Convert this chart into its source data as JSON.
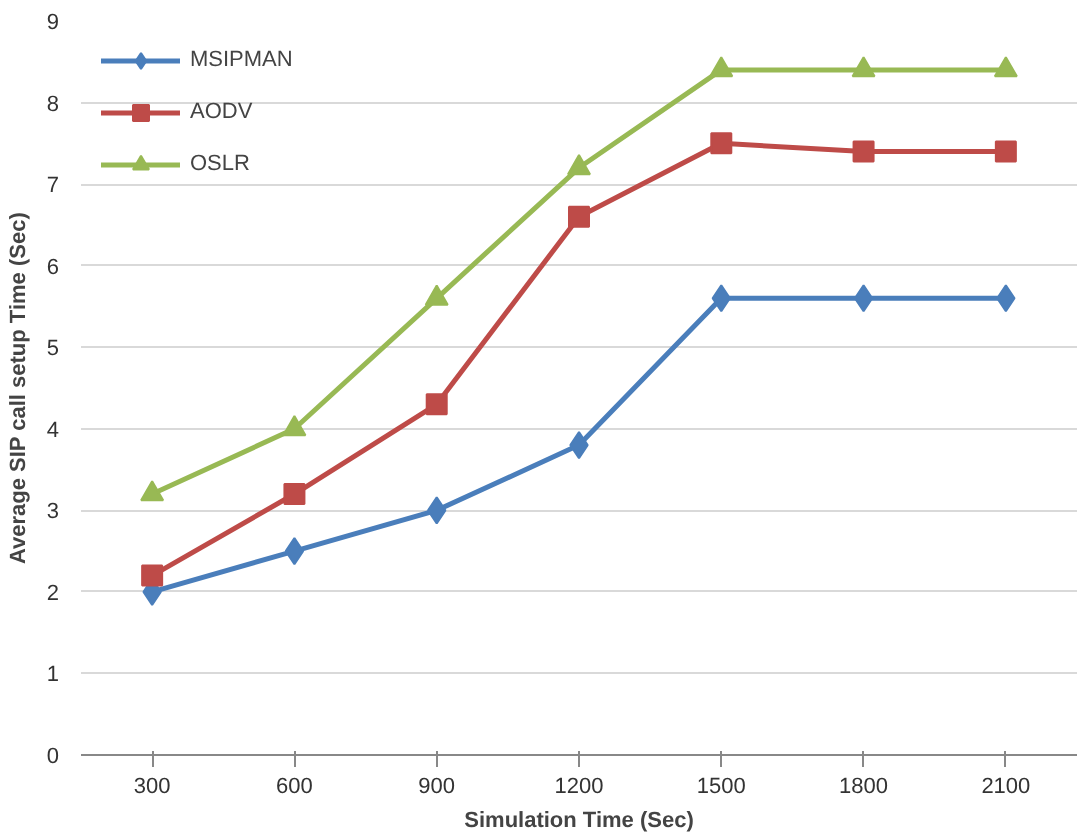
{
  "chart_data": {
    "type": "line",
    "xlabel": "Simulation Time (Sec)",
    "ylabel": "Average SIP call setup Time (Sec)",
    "categories": [
      "300",
      "600",
      "900",
      "1200",
      "1500",
      "1800",
      "2100"
    ],
    "series": [
      {
        "name": "MSIPMAN",
        "color": "#4a7ebb",
        "marker": "diamond",
        "values": [
          2.0,
          2.5,
          3.0,
          3.8,
          5.6,
          5.6,
          5.6
        ]
      },
      {
        "name": "AODV",
        "color": "#be4b48",
        "marker": "square",
        "values": [
          2.2,
          3.2,
          4.3,
          6.6,
          7.5,
          7.4,
          7.4
        ]
      },
      {
        "name": "OSLR",
        "color": "#98b954",
        "marker": "triangle",
        "values": [
          3.2,
          4.0,
          5.6,
          7.2,
          8.4,
          8.4,
          8.4
        ]
      }
    ],
    "ylim": [
      0,
      9
    ],
    "yticks": [
      0,
      1,
      2,
      3,
      4,
      5,
      6,
      7,
      8,
      9
    ],
    "grid": "y",
    "legend": "top left",
    "line_style": "solid"
  }
}
